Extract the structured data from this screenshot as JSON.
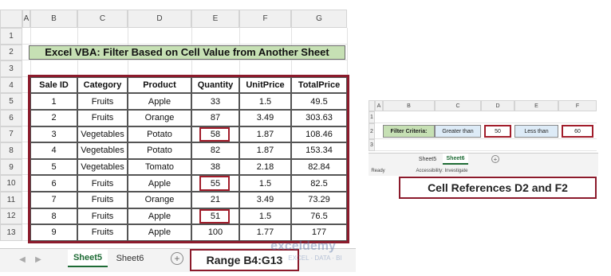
{
  "left_sheet": {
    "column_headers": [
      "A",
      "B",
      "C",
      "D",
      "E",
      "F",
      "G"
    ],
    "row_numbers": [
      "1",
      "2",
      "3",
      "4",
      "5",
      "6",
      "7",
      "8",
      "9",
      "10",
      "11",
      "12",
      "13"
    ],
    "title": "Excel VBA: Filter Based on Cell Value from Another Sheet",
    "table": {
      "header": [
        "Sale ID",
        "Category",
        "Product",
        "Quantity",
        "UnitPrice",
        "TotalPrice"
      ],
      "rows": [
        [
          1,
          "Fruits",
          "Apple",
          33,
          1.5,
          49.5
        ],
        [
          2,
          "Fruits",
          "Orange",
          87,
          3.49,
          303.63
        ],
        [
          3,
          "Vegetables",
          "Potato",
          58,
          1.87,
          108.46
        ],
        [
          4,
          "Vegetables",
          "Potato",
          82,
          1.87,
          153.34
        ],
        [
          5,
          "Vegetables",
          "Tomato",
          38,
          2.18,
          82.84
        ],
        [
          6,
          "Fruits",
          "Apple",
          55,
          1.5,
          82.5
        ],
        [
          7,
          "Fruits",
          "Orange",
          21,
          3.49,
          73.29
        ],
        [
          8,
          "Fruits",
          "Apple",
          51,
          1.5,
          76.5
        ],
        [
          9,
          "Fruits",
          "Apple",
          100,
          1.77,
          177
        ]
      ]
    },
    "tabs": [
      "Sheet5",
      "Sheet6"
    ]
  },
  "range_label": "Range B4:G13",
  "right_sheet": {
    "column_headers": [
      "A",
      "B",
      "C",
      "D",
      "E",
      "F"
    ],
    "row_numbers": [
      "1",
      "2",
      "3"
    ],
    "criteria": [
      "Filter Criteria:",
      "Greater than",
      "50",
      "Less than",
      "60"
    ],
    "tabs": [
      "Sheet5",
      "Sheet6"
    ],
    "status": [
      "Ready",
      "Accessibility: Investigate"
    ]
  },
  "cell_ref_label": "Cell References D2 and F2",
  "watermark": [
    "exceldemy",
    "EXCEL · DATA · BI"
  ]
}
